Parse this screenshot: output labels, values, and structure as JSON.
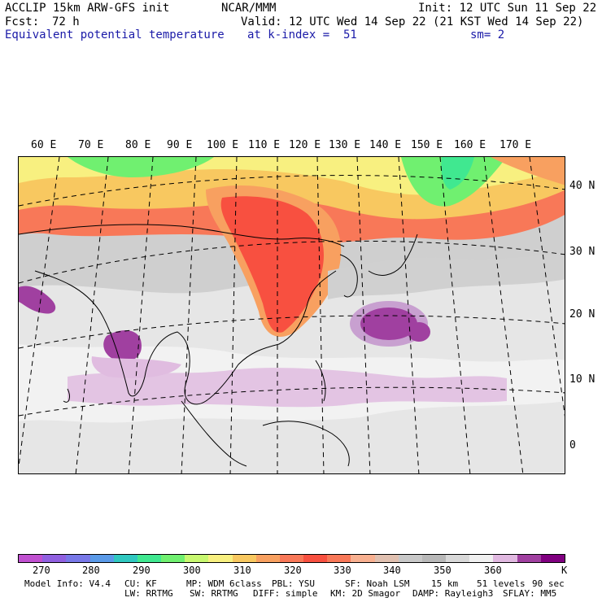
{
  "header": {
    "model": "ACCLIP 15km ARW-GFS init",
    "center": "NCAR/MMM",
    "init": "Init: 12 UTC Sun 11 Sep 22",
    "fcst_label": "Fcst:",
    "fcst_value": "72 h",
    "valid": "Valid: 12 UTC Wed 14 Sep 22 (21 KST Wed 14 Sep 22)",
    "field": "Equivalent potential temperature",
    "level": "at k-index =  51",
    "smooth": "sm= 2"
  },
  "map": {
    "lon_labels": [
      "60 E",
      "70 E",
      "80 E",
      "90 E",
      "100 E",
      "110 E",
      "120 E",
      "130 E",
      "140 E",
      "150 E",
      "160 E",
      "170 E"
    ],
    "lat_labels": [
      "40 N",
      "30 N",
      "20 N",
      "10 N",
      "0"
    ]
  },
  "colorbar": {
    "colors": [
      "#c050d0",
      "#9060e0",
      "#7878e8",
      "#5a9ae8",
      "#30c8c0",
      "#40e890",
      "#70f070",
      "#c8f870",
      "#f8f080",
      "#f8c860",
      "#f8a060",
      "#f87858",
      "#f85040",
      "#f87858",
      "#f8b090",
      "#e0c0b0",
      "#c8c8c8",
      "#b8b8b8",
      "#d8d8d8",
      "#f0f0f0",
      "#e0b8e0",
      "#a040a0",
      "#800080"
    ],
    "ticks": [
      "270",
      "280",
      "290",
      "300",
      "310",
      "320",
      "330",
      "340",
      "350",
      "360"
    ],
    "unit": "K"
  },
  "footer": {
    "line1": [
      "Model Info: V4.4",
      "CU: KF",
      "MP: WDM 6class",
      "PBL: YSU",
      "SF: Noah LSM",
      "15 km",
      "51 levels",
      "90 sec"
    ],
    "line2": [
      "LW: RRTMG",
      "SW: RRTMG",
      "DIFF: simple",
      "KM: 2D Smagor",
      "DAMP: Rayleigh3",
      "SFLAY: MM5"
    ]
  }
}
